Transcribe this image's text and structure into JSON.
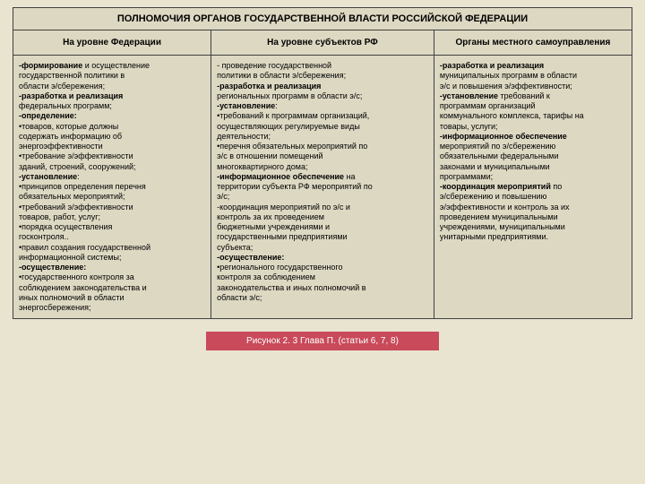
{
  "table": {
    "title": "ПОЛНОМОЧИЯ ОРГАНОВ ГОСУДАРСТВЕННОЙ ВЛАСТИ РОССИЙСКОЙ ФЕДЕРАЦИИ",
    "headers": [
      "На уровне Федерации",
      "На уровне субъектов РФ",
      "Органы местного самоуправления"
    ],
    "col1_lines": [
      {
        "b": "-формирование",
        "t": " и осуществление"
      },
      {
        "t": "государственной политики в"
      },
      {
        "t": "области э/сбережения;"
      },
      {
        "b": "-разработка и реализация"
      },
      {
        "t": "федеральных программ;"
      },
      {
        "b": "-определение:"
      },
      {
        "t": "•товаров, которые должны"
      },
      {
        "t": "содержать информацию об"
      },
      {
        "t": "энергоэффективности"
      },
      {
        "t": "•требование э/эффективности"
      },
      {
        "t": "зданий, строений, сооружений;"
      },
      {
        "b": "-установление",
        "t": ":"
      },
      {
        "t": "•принципов определения перечня"
      },
      {
        "t": "обязательных мероприятий;"
      },
      {
        "t": "•требований э/эффективности"
      },
      {
        "t": "товаров, работ, услуг;"
      },
      {
        "t": "•порядка осуществления"
      },
      {
        "t": "госконтроля.."
      },
      {
        "t": "•правил создания государственной"
      },
      {
        "t": "информационной системы;"
      },
      {
        "b": "-осуществление:"
      },
      {
        "t": "•государственного контроля за"
      },
      {
        "t": "соблюдением законодательства и"
      },
      {
        "t": "иных полномочий в области"
      },
      {
        "t": "энергосбережения;"
      }
    ],
    "col2_lines": [
      {
        "t": "- проведение государственной"
      },
      {
        "t": "политики в области э/сбережения;"
      },
      {
        "b": "-разработка и реализация"
      },
      {
        "t": "региональных программ в области э/с;"
      },
      {
        "b": "-установление",
        "t": ":"
      },
      {
        "t": "•требований к программам организаций,"
      },
      {
        "t": "осуществляющих регулируемые виды"
      },
      {
        "t": "деятельности;"
      },
      {
        "t": "•перечня обязательных мероприятий по"
      },
      {
        "t": "э/с в отношении помещений"
      },
      {
        "t": "многоквартирного дома;"
      },
      {
        "b": "-информационное обеспечение",
        "t": " на"
      },
      {
        "t": "территории субъекта РФ мероприятий по"
      },
      {
        "t": "э/с;"
      },
      {
        "t": "-координация мероприятий по э/с и"
      },
      {
        "t": "контроль за их проведением"
      },
      {
        "t": "бюджетными учреждениями и"
      },
      {
        "t": "государственными предприятиями"
      },
      {
        "t": "субъекта;"
      },
      {
        "b": "-осуществление:"
      },
      {
        "t": "•регионального государственного"
      },
      {
        "t": "контроля за соблюдением"
      },
      {
        "t": "законодательства и иных полномочий в"
      },
      {
        "t": "области э/с;"
      }
    ],
    "col3_lines": [
      {
        "b": "-разработка и реализация"
      },
      {
        "t": "муниципальных программ в области"
      },
      {
        "t": "э/с и повышения э/эффективности;"
      },
      {
        "b": "-установление",
        "t": " требований к"
      },
      {
        "t": "программам организаций"
      },
      {
        "t": "коммунального комплекса, тарифы на"
      },
      {
        "t": "товары, услуги;"
      },
      {
        "b": "-информационное обеспечение"
      },
      {
        "t": "мероприятий по э/сбережению"
      },
      {
        "t": "обязательными федеральными"
      },
      {
        "t": "законами и муниципальными"
      },
      {
        "t": "программами;"
      },
      {
        "b": "-координация мероприятий",
        "t": " по"
      },
      {
        "t": "э/сбережению и повышению"
      },
      {
        "t": "э/эффективности и контроль за их"
      },
      {
        "t": "проведением муниципальными"
      },
      {
        "t": "учреждениями, муниципальными"
      },
      {
        "t": "унитарными предприятиями."
      }
    ],
    "colors": {
      "page_bg": "#e8e4d0",
      "cell_bg": "#ddd8c2",
      "border": "#404040",
      "caption_bg": "#c94a5a",
      "caption_text": "#ffffff"
    },
    "col_widths_pct": [
      32,
      36,
      32
    ]
  },
  "caption": "Рисунок 2. 3 Глава П. (статьи 6, 7, 8)"
}
